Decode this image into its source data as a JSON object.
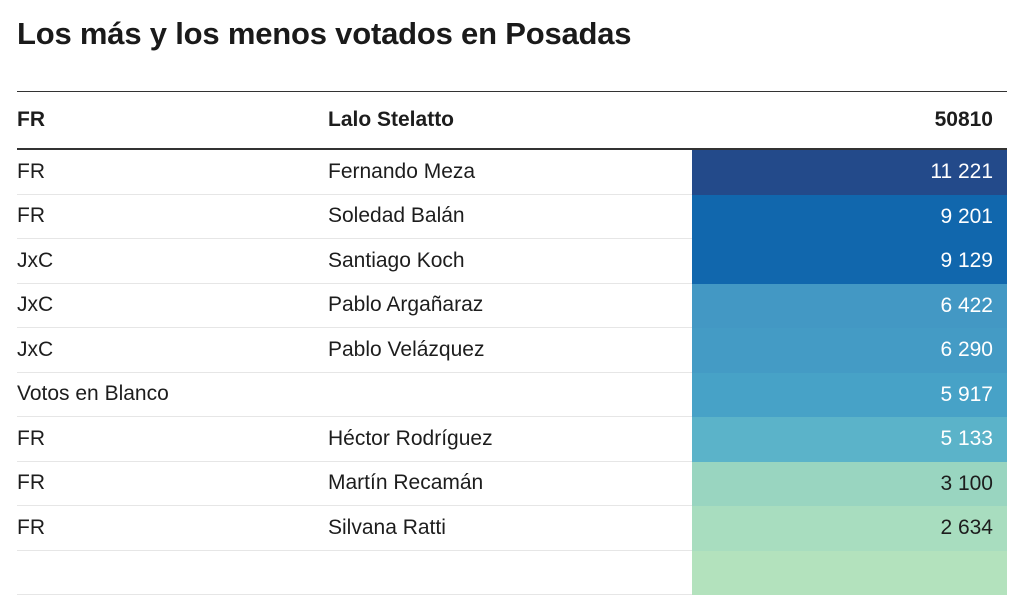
{
  "title": "Los más y los menos votados en Posadas",
  "chart_data": {
    "type": "table",
    "header": {
      "party": "FR",
      "candidate": "Lalo Stelatto",
      "votes": "50810"
    },
    "rows": [
      {
        "party": "FR",
        "candidate": "Fernando Meza",
        "votes": "11 221",
        "color": "#234a8a",
        "text_color": "#ffffff"
      },
      {
        "party": "FR",
        "candidate": "Soledad Balán",
        "votes": "9 201",
        "color": "#1167ad",
        "text_color": "#ffffff"
      },
      {
        "party": "JxC",
        "candidate": "Santiago Koch",
        "votes": "9 129",
        "color": "#1167ad",
        "text_color": "#ffffff"
      },
      {
        "party": "JxC",
        "candidate": "Pablo Argañaraz",
        "votes": "6 422",
        "color": "#4398c4",
        "text_color": "#ffffff"
      },
      {
        "party": "JxC",
        "candidate": "Pablo Velázquez",
        "votes": "6 290",
        "color": "#449bc5",
        "text_color": "#ffffff"
      },
      {
        "party": "Votos en Blanco",
        "candidate": "",
        "votes": "5 917",
        "color": "#47a2c7",
        "text_color": "#ffffff"
      },
      {
        "party": "FR",
        "candidate": "Héctor Rodríguez",
        "votes": "5 133",
        "color": "#5bb3c9",
        "text_color": "#ffffff"
      },
      {
        "party": "FR",
        "candidate": "Martín Recamán",
        "votes": "3 100",
        "color": "#99d5c0",
        "text_color": "#1d1d1d"
      },
      {
        "party": "FR",
        "candidate": "Silvana Ratti",
        "votes": "2 634",
        "color": "#a8ddbf",
        "text_color": "#1d1d1d"
      },
      {
        "party": "",
        "candidate": "",
        "votes": "",
        "color": "#b3e2bd",
        "text_color": "#1d1d1d"
      }
    ]
  }
}
